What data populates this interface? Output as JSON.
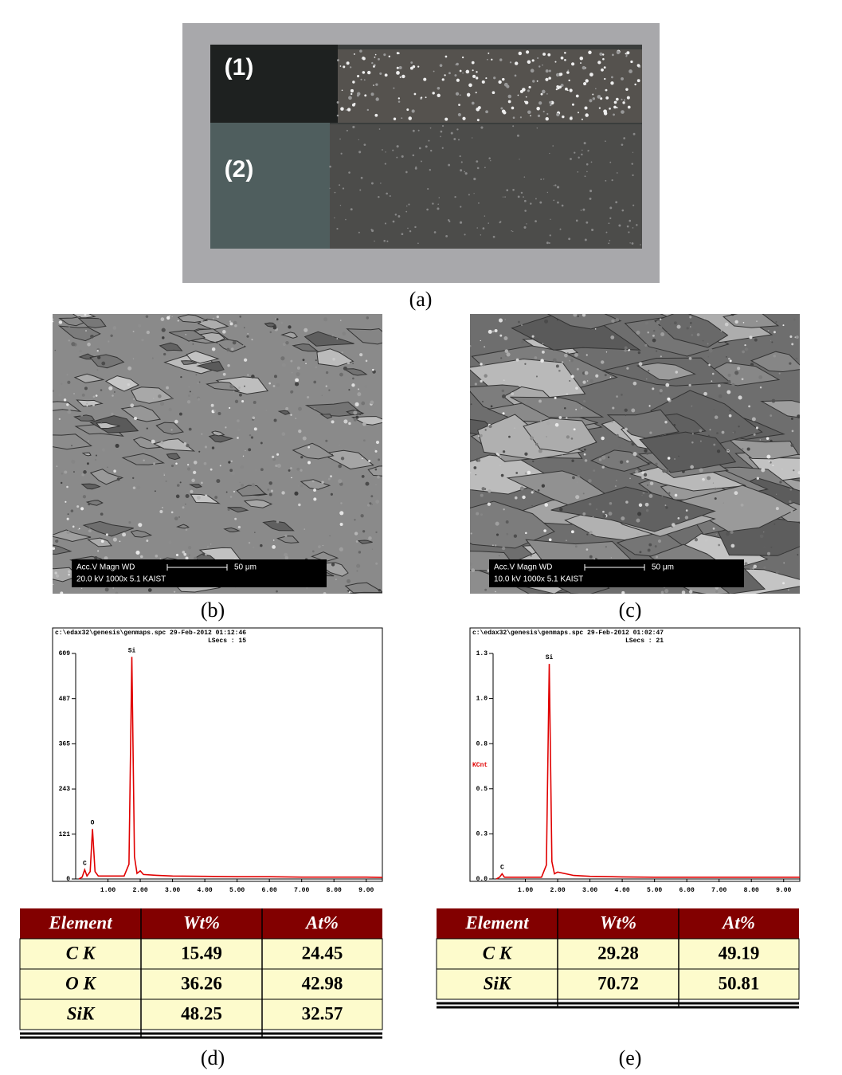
{
  "photo": {
    "region_labels": [
      "(1)",
      "(2)"
    ],
    "caption": "(a)"
  },
  "sem_images": [
    {
      "info_top": "Acc.V  Magn   WD",
      "scale": "50 μm",
      "info_bottom": "20.0 kV 1000x   5.1   KAIST",
      "caption": "(b)"
    },
    {
      "info_top": "Acc.V  Magn   WD",
      "scale": "50 μm",
      "info_bottom": "10.0 kV 1000x   5.1   KAIST",
      "caption": "(c)"
    }
  ],
  "chart_data": [
    {
      "type": "line",
      "title": "c:\\edax32\\genesis\\genmaps.spc  29-Feb-2012 01:12:46",
      "subtitle": "LSecs : 15",
      "caption": "(d)",
      "color": "#e00000",
      "x": [
        0.1,
        0.2,
        0.28,
        0.35,
        0.45,
        0.52,
        0.6,
        0.7,
        1.0,
        1.5,
        1.65,
        1.74,
        1.82,
        1.9,
        2.0,
        2.1,
        2.5,
        3.0,
        4.0,
        5.0,
        6.0,
        7.0,
        8.0,
        9.0,
        9.5
      ],
      "values": [
        0,
        5,
        25,
        8,
        20,
        135,
        20,
        8,
        8,
        8,
        40,
        600,
        60,
        15,
        22,
        12,
        10,
        8,
        7,
        6,
        6,
        5,
        5,
        5,
        4
      ],
      "point_labels": [
        null,
        null,
        "C",
        null,
        null,
        "O",
        null,
        null,
        null,
        null,
        null,
        "Si",
        null,
        null,
        null,
        null,
        null,
        null,
        null,
        null,
        null,
        null,
        null,
        null,
        null
      ],
      "xlim": [
        0,
        9.5
      ],
      "ylim": [
        0,
        609
      ],
      "xticks": [
        {
          "value": 1,
          "label": "1.00"
        },
        {
          "value": 2,
          "label": "2.00"
        },
        {
          "value": 3,
          "label": "3.00"
        },
        {
          "value": 4,
          "label": "4.00"
        },
        {
          "value": 5,
          "label": "5.00"
        },
        {
          "value": 6,
          "label": "6.00"
        },
        {
          "value": 7,
          "label": "7.00"
        },
        {
          "value": 8,
          "label": "8.00"
        },
        {
          "value": 9,
          "label": "9.00"
        }
      ],
      "yticks": [
        0,
        121,
        243,
        365,
        487,
        609
      ]
    },
    {
      "type": "line",
      "title": "c:\\edax32\\genesis\\genmaps.spc  29-Feb-2012 01:02:47",
      "subtitle": "LSecs : 21",
      "caption": "(e)",
      "color": "#e00000",
      "ylabel": "KCnt",
      "x": [
        0.1,
        0.2,
        0.28,
        0.35,
        0.5,
        1.0,
        1.5,
        1.65,
        1.74,
        1.82,
        1.9,
        2.0,
        2.5,
        3.0,
        4.0,
        5.0,
        6.0,
        7.0,
        8.0,
        9.0,
        9.5
      ],
      "values": [
        0,
        0.01,
        0.03,
        0.01,
        0.01,
        0.01,
        0.01,
        0.08,
        1.24,
        0.1,
        0.03,
        0.04,
        0.02,
        0.015,
        0.012,
        0.01,
        0.01,
        0.01,
        0.01,
        0.01,
        0.01
      ],
      "point_labels": [
        null,
        null,
        "C",
        null,
        null,
        null,
        null,
        null,
        "Si",
        null,
        null,
        null,
        null,
        null,
        null,
        null,
        null,
        null,
        null,
        null,
        null
      ],
      "xlim": [
        0,
        9.5
      ],
      "ylim": [
        0,
        1.3
      ],
      "xticks": [
        {
          "value": 1,
          "label": "1.00"
        },
        {
          "value": 2,
          "label": "2.00"
        },
        {
          "value": 3,
          "label": "3.00"
        },
        {
          "value": 4,
          "label": "4.00"
        },
        {
          "value": 5,
          "label": "5.00"
        },
        {
          "value": 6,
          "label": "6.00"
        },
        {
          "value": 7,
          "label": "7.00"
        },
        {
          "value": 8,
          "label": "8.00"
        },
        {
          "value": 9,
          "label": "9.00"
        }
      ],
      "yticks": [
        {
          "value": 0,
          "label": "0.0"
        },
        {
          "value": 0.26,
          "label": "0.3"
        },
        {
          "value": 0.52,
          "label": "0.5"
        },
        {
          "value": 0.78,
          "label": "0.8"
        },
        {
          "value": 1.04,
          "label": "1.0"
        },
        {
          "value": 1.3,
          "label": "1.3"
        }
      ]
    }
  ],
  "tables": [
    {
      "header": [
        "Element",
        "Wt%",
        "At%"
      ],
      "rows": [
        [
          "C K",
          15.49,
          24.45
        ],
        [
          "O K",
          36.26,
          42.98
        ],
        [
          "SiK",
          48.25,
          32.57
        ]
      ]
    },
    {
      "header": [
        "Element",
        "Wt%",
        "At%"
      ],
      "rows": [
        [
          "C K",
          29.28,
          49.19
        ],
        [
          "SiK",
          70.72,
          50.81
        ]
      ]
    }
  ]
}
